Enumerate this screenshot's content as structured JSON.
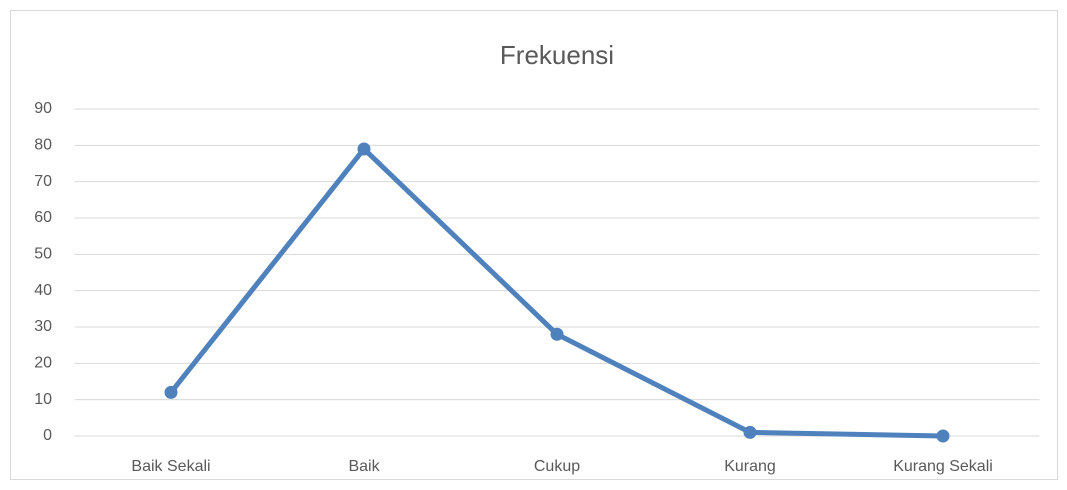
{
  "chart_data": {
    "type": "line",
    "title": "Frekuensi",
    "categories": [
      "Baik Sekali",
      "Baik",
      "Cukup",
      "Kurang",
      "Kurang Sekali"
    ],
    "values": [
      12,
      79,
      28,
      1,
      0
    ],
    "color": "#4f81bd",
    "ylim": [
      0,
      90
    ],
    "yticks": [
      0,
      10,
      20,
      30,
      40,
      50,
      60,
      70,
      80,
      90
    ],
    "grid": true
  }
}
